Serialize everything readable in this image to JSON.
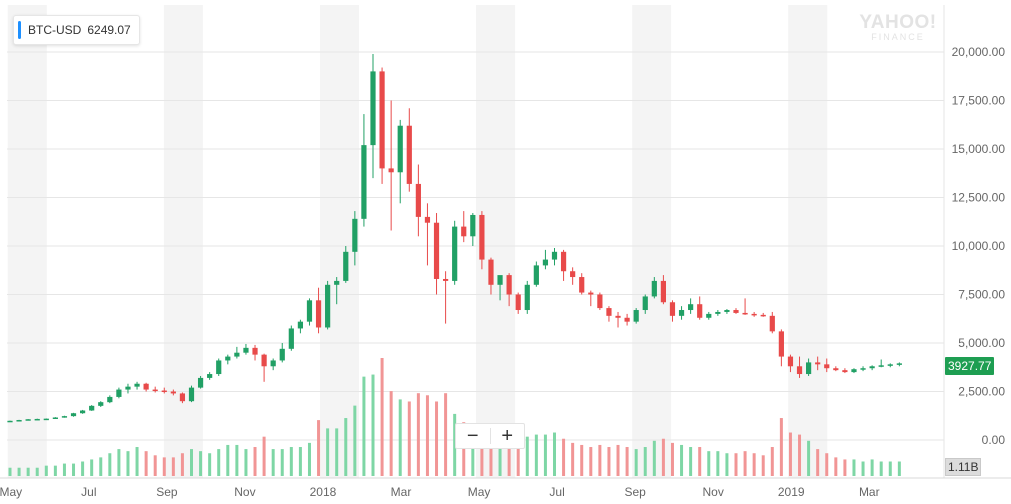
{
  "ticker": {
    "symbol": "BTC-USD",
    "price": "6249.07",
    "accent": "#1e90ff"
  },
  "watermark": {
    "line1": "YAHOO!",
    "line2": "FINANCE"
  },
  "zoom": {
    "minus": "−",
    "plus": "+"
  },
  "last_price": {
    "text": "3927.77",
    "color": "#1e9e52"
  },
  "volume_label": "1.11B",
  "colors": {
    "up": "#21a065",
    "down": "#e84a4a",
    "vol_up": "#7ed6a5",
    "vol_down": "#f19595",
    "band": "#f4f4f4",
    "grid": "#e6e6e6",
    "axis_text": "#666666"
  },
  "chart_data": {
    "type": "candlestick",
    "title": "",
    "interval": "weekly",
    "y_axis": {
      "ticks": [
        "20,000.00",
        "17,500.00",
        "15,000.00",
        "12,500.00",
        "10,000.00",
        "7,500.00",
        "5,000.00",
        "2,500.00",
        "0.00"
      ],
      "range": [
        0,
        21500
      ],
      "side": "right"
    },
    "x_axis": {
      "labels": [
        "May",
        "Jul",
        "Sep",
        "Nov",
        "2018",
        "Mar",
        "May",
        "Jul",
        "Sep",
        "Nov",
        "2019",
        "Mar"
      ]
    },
    "bands": [
      "May",
      "Sep",
      "2018",
      "May",
      "Sep",
      "2019"
    ],
    "weeks_per_month": 4.3,
    "start_week_offset": -4.3,
    "volume": {
      "max_label": "1.11B"
    },
    "candles": [
      [
        950,
        1000,
        940,
        990,
        0.04
      ],
      [
        990,
        1040,
        980,
        1030,
        0.04
      ],
      [
        1030,
        1080,
        1010,
        1070,
        0.04
      ],
      [
        1070,
        1100,
        1050,
        1085,
        0.04
      ],
      [
        1085,
        1110,
        1070,
        1100,
        0.05
      ],
      [
        1100,
        1180,
        1090,
        1160,
        0.05
      ],
      [
        1160,
        1250,
        1150,
        1230,
        0.06
      ],
      [
        1230,
        1400,
        1200,
        1380,
        0.06
      ],
      [
        1380,
        1550,
        1350,
        1520,
        0.07
      ],
      [
        1520,
        1800,
        1500,
        1760,
        0.08
      ],
      [
        1760,
        2000,
        1700,
        1950,
        0.09
      ],
      [
        1950,
        2300,
        1900,
        2220,
        0.11
      ],
      [
        2220,
        2700,
        2150,
        2600,
        0.13
      ],
      [
        2600,
        2900,
        2400,
        2750,
        0.12
      ],
      [
        2750,
        3000,
        2600,
        2900,
        0.14
      ],
      [
        2900,
        2950,
        2500,
        2600,
        0.12
      ],
      [
        2600,
        2750,
        2450,
        2550,
        0.1
      ],
      [
        2550,
        2700,
        2400,
        2500,
        0.09
      ],
      [
        2500,
        2600,
        2300,
        2400,
        0.09
      ],
      [
        2400,
        2450,
        1900,
        2000,
        0.11
      ],
      [
        2000,
        2800,
        1950,
        2700,
        0.13
      ],
      [
        2700,
        3300,
        2650,
        3200,
        0.12
      ],
      [
        3200,
        3500,
        3100,
        3400,
        0.11
      ],
      [
        3400,
        4200,
        3300,
        4100,
        0.13
      ],
      [
        4100,
        4400,
        3900,
        4300,
        0.15
      ],
      [
        4300,
        4800,
        4200,
        4500,
        0.15
      ],
      [
        4500,
        4950,
        4400,
        4750,
        0.13
      ],
      [
        4750,
        4900,
        4100,
        4400,
        0.14
      ],
      [
        4400,
        4450,
        3000,
        3800,
        0.19
      ],
      [
        3800,
        4200,
        3600,
        4100,
        0.13
      ],
      [
        4100,
        5000,
        4000,
        4700,
        0.13
      ],
      [
        4700,
        5900,
        4600,
        5750,
        0.14
      ],
      [
        5750,
        6200,
        5500,
        6100,
        0.14
      ],
      [
        6100,
        7300,
        5900,
        7200,
        0.16
      ],
      [
        7200,
        7850,
        5500,
        5800,
        0.27
      ],
      [
        5800,
        8200,
        5700,
        8000,
        0.23
      ],
      [
        8000,
        8400,
        7000,
        8200,
        0.23
      ],
      [
        8200,
        10000,
        8100,
        9700,
        0.28
      ],
      [
        9700,
        11800,
        9000,
        11400,
        0.34
      ],
      [
        11400,
        16800,
        11000,
        15200,
        0.48
      ],
      [
        15200,
        19900,
        13500,
        19000,
        0.49
      ],
      [
        19000,
        19200,
        13200,
        14000,
        0.57
      ],
      [
        14000,
        17500,
        10800,
        13800,
        0.41
      ],
      [
        13800,
        16500,
        12200,
        16200,
        0.37
      ],
      [
        16200,
        17100,
        12800,
        13200,
        0.36
      ],
      [
        13200,
        14200,
        10500,
        11500,
        0.4
      ],
      [
        11500,
        12200,
        9000,
        11200,
        0.39
      ],
      [
        11200,
        11700,
        7500,
        8300,
        0.36
      ],
      [
        8300,
        8700,
        6000,
        8200,
        0.4
      ],
      [
        8200,
        11300,
        8000,
        11000,
        0.3
      ],
      [
        11000,
        11800,
        10200,
        10500,
        0.26
      ],
      [
        10500,
        11700,
        10000,
        11600,
        0.23
      ],
      [
        11600,
        11800,
        8800,
        9300,
        0.22
      ],
      [
        9300,
        9400,
        7500,
        8000,
        0.21
      ],
      [
        8000,
        8400,
        7200,
        8500,
        0.21
      ],
      [
        8500,
        8600,
        6900,
        7500,
        0.18
      ],
      [
        7500,
        7600,
        6500,
        6700,
        0.17
      ],
      [
        6700,
        8200,
        6500,
        8000,
        0.19
      ],
      [
        8000,
        9200,
        7900,
        9000,
        0.2
      ],
      [
        9000,
        9800,
        8800,
        9300,
        0.2
      ],
      [
        9300,
        9900,
        9000,
        9700,
        0.21
      ],
      [
        9700,
        9800,
        8200,
        8700,
        0.18
      ],
      [
        8700,
        8900,
        8000,
        8400,
        0.16
      ],
      [
        8400,
        8600,
        7500,
        7600,
        0.15
      ],
      [
        7600,
        7700,
        6900,
        7500,
        0.14
      ],
      [
        7500,
        7600,
        6700,
        6800,
        0.15
      ],
      [
        6800,
        6900,
        6100,
        6400,
        0.14
      ],
      [
        6400,
        6600,
        5800,
        6300,
        0.15
      ],
      [
        6300,
        6500,
        5900,
        6100,
        0.14
      ],
      [
        6100,
        6800,
        6000,
        6700,
        0.13
      ],
      [
        6700,
        7500,
        6500,
        7400,
        0.14
      ],
      [
        7400,
        8400,
        7300,
        8200,
        0.17
      ],
      [
        8200,
        8500,
        7000,
        7100,
        0.18
      ],
      [
        7100,
        7200,
        6100,
        6400,
        0.16
      ],
      [
        6400,
        6900,
        6200,
        6700,
        0.15
      ],
      [
        6700,
        7300,
        6500,
        7000,
        0.14
      ],
      [
        7000,
        7400,
        6200,
        6300,
        0.14
      ],
      [
        6300,
        6600,
        6200,
        6500,
        0.12
      ],
      [
        6500,
        6700,
        6400,
        6600,
        0.12
      ],
      [
        6600,
        6750,
        6500,
        6700,
        0.11
      ],
      [
        6700,
        6800,
        6500,
        6550,
        0.11
      ],
      [
        6550,
        7300,
        6450,
        6500,
        0.12
      ],
      [
        6500,
        6600,
        6350,
        6450,
        0.11
      ],
      [
        6450,
        6550,
        6350,
        6400,
        0.1
      ],
      [
        6400,
        6600,
        5500,
        5600,
        0.14
      ],
      [
        5600,
        5700,
        3800,
        4300,
        0.28
      ],
      [
        4300,
        4400,
        3500,
        3800,
        0.21
      ],
      [
        3800,
        4300,
        3200,
        3400,
        0.2
      ],
      [
        3400,
        4200,
        3300,
        4000,
        0.17
      ],
      [
        4000,
        4300,
        3600,
        3900,
        0.13
      ],
      [
        3900,
        4200,
        3500,
        3700,
        0.11
      ],
      [
        3700,
        3800,
        3550,
        3600,
        0.09
      ],
      [
        3600,
        3700,
        3450,
        3500,
        0.08
      ],
      [
        3500,
        3700,
        3450,
        3650,
        0.08
      ],
      [
        3650,
        3800,
        3550,
        3700,
        0.07
      ],
      [
        3700,
        3850,
        3600,
        3800,
        0.08
      ],
      [
        3800,
        4150,
        3750,
        3850,
        0.07
      ],
      [
        3850,
        3950,
        3750,
        3900,
        0.07
      ],
      [
        3900,
        4000,
        3800,
        3950,
        0.07
      ]
    ]
  }
}
